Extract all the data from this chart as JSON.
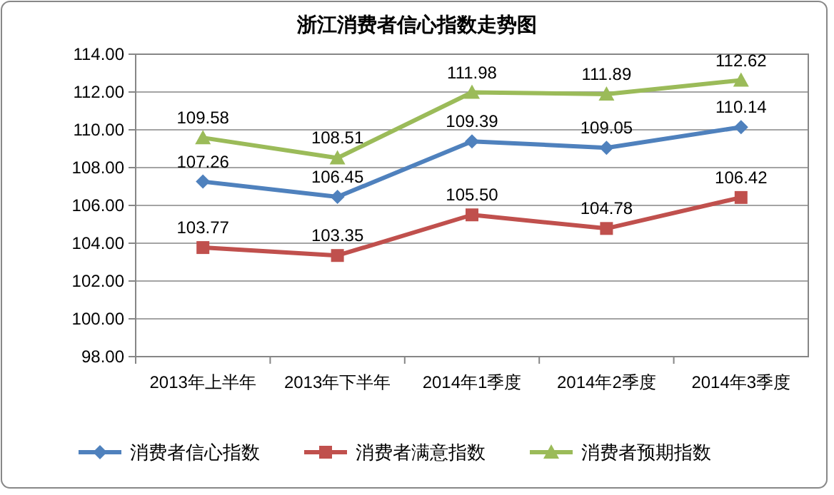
{
  "chart_data": {
    "type": "line",
    "title": "浙江消费者信心指数走势图",
    "categories": [
      "2013年上半年",
      "2013年下半年",
      "2014年1季度",
      "2014年2季度",
      "2014年3季度"
    ],
    "series": [
      {
        "name": "消费者信心指数",
        "color": "#4f81bd",
        "marker": "diamond",
        "values": [
          107.26,
          106.45,
          109.39,
          109.05,
          110.14
        ],
        "value_labels": [
          "107.26",
          "106.45",
          "109.39",
          "109.05",
          "110.14"
        ]
      },
      {
        "name": "消费者满意指数",
        "color": "#c0504d",
        "marker": "square",
        "values": [
          103.77,
          103.35,
          105.5,
          104.78,
          106.42
        ],
        "value_labels": [
          "103.77",
          "103.35",
          "105.50",
          "104.78",
          "106.42"
        ]
      },
      {
        "name": "消费者预期指数",
        "color": "#9bbb59",
        "marker": "triangle",
        "values": [
          109.58,
          108.51,
          111.98,
          111.89,
          112.62
        ],
        "value_labels": [
          "109.58",
          "108.51",
          "111.98",
          "111.89",
          "112.62"
        ]
      }
    ],
    "ylim": [
      98,
      114
    ],
    "yticks": [
      {
        "value": 98,
        "label": "98.00"
      },
      {
        "value": 100,
        "label": "100.00"
      },
      {
        "value": 102,
        "label": "102.00"
      },
      {
        "value": 104,
        "label": "104.00"
      },
      {
        "value": 106,
        "label": "106.00"
      },
      {
        "value": 108,
        "label": "108.00"
      },
      {
        "value": 110,
        "label": "110.00"
      },
      {
        "value": 112,
        "label": "112.00"
      },
      {
        "value": 114,
        "label": "114.00"
      }
    ],
    "grid": "y",
    "legend": "bottom",
    "line_style": "solid"
  }
}
